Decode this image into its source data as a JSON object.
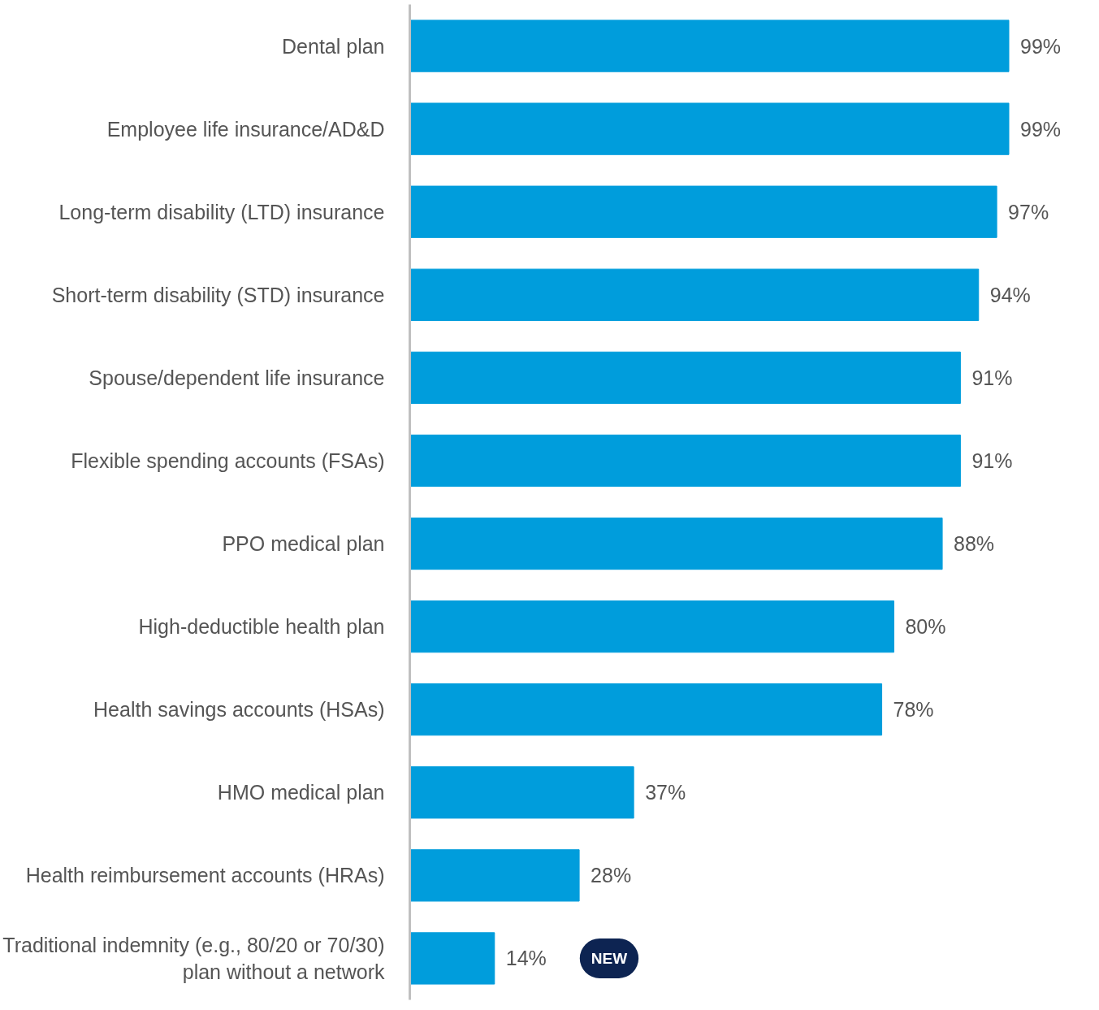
{
  "chart_data": {
    "type": "bar",
    "orientation": "horizontal",
    "categories": [
      "Dental plan",
      "Employee life insurance/AD&D",
      "Long-term disability (LTD) insurance",
      "Short-term disability (STD) insurance",
      "Spouse/dependent life insurance",
      "Flexible spending accounts (FSAs)",
      "PPO medical plan",
      "High-deductible health plan",
      "Health savings accounts (HSAs)",
      "HMO medical plan",
      "Health reimbursement accounts (HRAs)",
      "Traditional indemnity (e.g., 80/20 or 70/30)\nplan without a network"
    ],
    "values": [
      99,
      99,
      97,
      94,
      91,
      91,
      88,
      80,
      78,
      37,
      28,
      14
    ],
    "value_labels": [
      "99%",
      "99%",
      "97%",
      "94%",
      "91%",
      "91%",
      "88%",
      "80%",
      "78%",
      "37%",
      "28%",
      "14%"
    ],
    "color": "#009ddc",
    "grid": false,
    "annotations": [
      "NEW"
    ]
  }
}
